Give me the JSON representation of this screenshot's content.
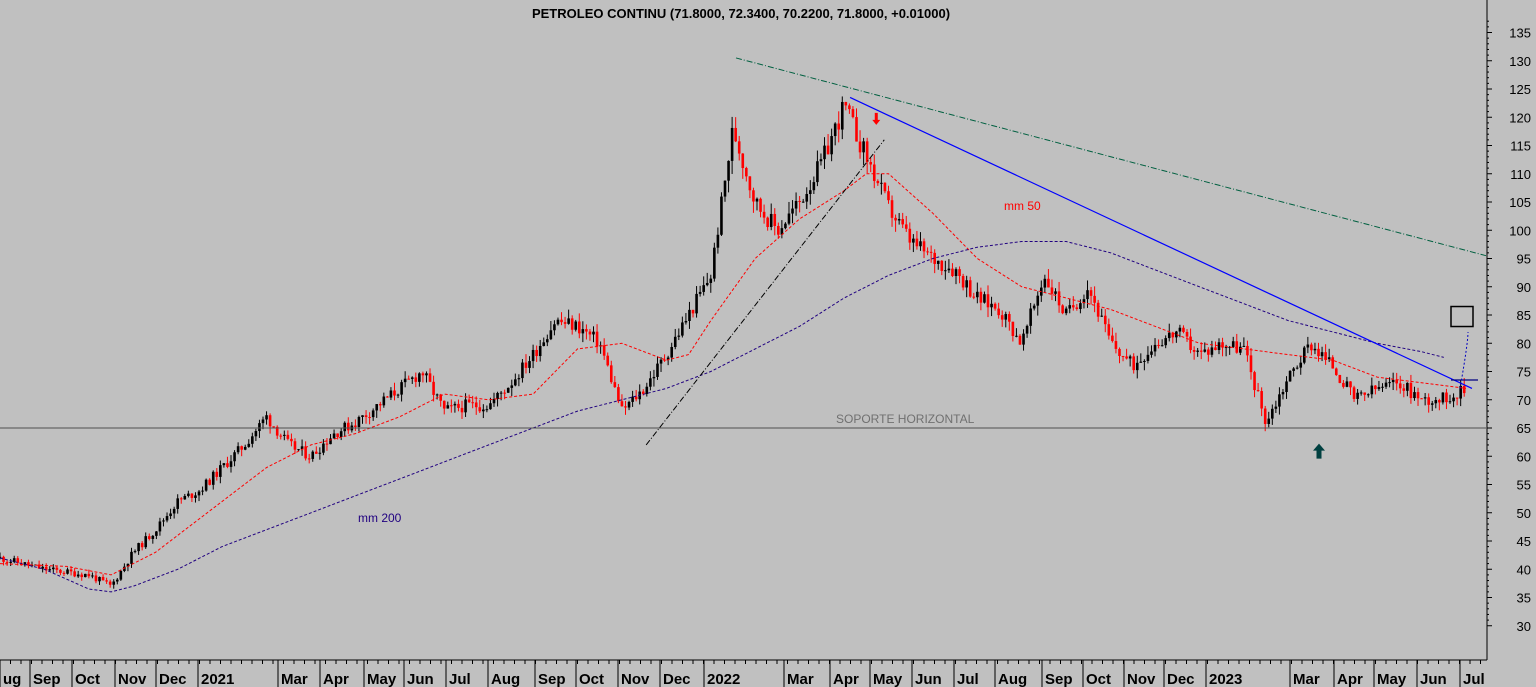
{
  "chart_data": {
    "type": "candlestick",
    "title": "PETROLEO CONTINU (71.8000, 72.3400, 70.2200, 71.8000, +0.01000)",
    "ylim": [
      25,
      140
    ],
    "y_ticks": [
      30,
      35,
      40,
      45,
      50,
      55,
      60,
      65,
      70,
      75,
      80,
      85,
      90,
      95,
      100,
      105,
      110,
      115,
      120,
      125,
      130,
      135
    ],
    "x_labels": [
      "Aug",
      "Sep",
      "Oct",
      "Nov",
      "Dec",
      "2021",
      "Mar",
      "Apr",
      "May",
      "Jun",
      "Jul",
      "Aug",
      "Sep",
      "Oct",
      "Nov",
      "Dec",
      "2022",
      "Mar",
      "Apr",
      "May",
      "Jun",
      "Jul",
      "Aug",
      "Sep",
      "Oct",
      "Nov",
      "Dec",
      "2023",
      "Mar",
      "Apr",
      "May",
      "Jun",
      "Jul"
    ],
    "x_label_visible": [
      "ug",
      "Sep",
      "Oct",
      "Nov",
      "Dec",
      "2021",
      "Mar",
      "Apr",
      "May",
      "Jun",
      "Jul",
      "Aug",
      "Sep",
      "Oct",
      "Nov",
      "Dec",
      "2022",
      "Mar",
      "Apr",
      "May",
      "Jun",
      "Jul",
      "Aug",
      "Sep",
      "Oct",
      "Nov",
      "Dec",
      "2023",
      "Mar",
      "Apr",
      "May",
      "Jun",
      "Jul"
    ],
    "price_path": [
      [
        0,
        42
      ],
      [
        1,
        41
      ],
      [
        2,
        40
      ],
      [
        3,
        39.5
      ],
      [
        4,
        39
      ],
      [
        5,
        37
      ],
      [
        6,
        43
      ],
      [
        7,
        47
      ],
      [
        8,
        52
      ],
      [
        9,
        54
      ],
      [
        10,
        58
      ],
      [
        11,
        62
      ],
      [
        12,
        67
      ],
      [
        13,
        62
      ],
      [
        14,
        60
      ],
      [
        15,
        64
      ],
      [
        16,
        66
      ],
      [
        17,
        69
      ],
      [
        18,
        72
      ],
      [
        19,
        75
      ],
      [
        20,
        68
      ],
      [
        21,
        69
      ],
      [
        22,
        69
      ],
      [
        23,
        73
      ],
      [
        24,
        78
      ],
      [
        25,
        84
      ],
      [
        26,
        83
      ],
      [
        27,
        80
      ],
      [
        28,
        68
      ],
      [
        29,
        72
      ],
      [
        30,
        78
      ],
      [
        31,
        85
      ],
      [
        32,
        92
      ],
      [
        33,
        118
      ],
      [
        34,
        105
      ],
      [
        35,
        100
      ],
      [
        36,
        105
      ],
      [
        37,
        112
      ],
      [
        38,
        122
      ],
      [
        39,
        113
      ],
      [
        40,
        104
      ],
      [
        41,
        98
      ],
      [
        42,
        95
      ],
      [
        43,
        93
      ],
      [
        44,
        88
      ],
      [
        45,
        86
      ],
      [
        46,
        80
      ],
      [
        47,
        92
      ],
      [
        48,
        85
      ],
      [
        49,
        90
      ],
      [
        50,
        80
      ],
      [
        51,
        76
      ],
      [
        52,
        80
      ],
      [
        53,
        82
      ],
      [
        54,
        78
      ],
      [
        55,
        80
      ],
      [
        56,
        79
      ],
      [
        57,
        66
      ],
      [
        58,
        74
      ],
      [
        59,
        80
      ],
      [
        60,
        76
      ],
      [
        61,
        70
      ],
      [
        62,
        72
      ],
      [
        63,
        73
      ],
      [
        64,
        70
      ],
      [
        65,
        70.2
      ],
      [
        66,
        71.8
      ]
    ],
    "series": [
      {
        "name": "mm 50",
        "color": "#ff0000",
        "style": "dashed",
        "values": [
          [
            0,
            41
          ],
          [
            3,
            40.5
          ],
          [
            5,
            39
          ],
          [
            7,
            43
          ],
          [
            9,
            49
          ],
          [
            11,
            55
          ],
          [
            12,
            58
          ],
          [
            14,
            62
          ],
          [
            16,
            64
          ],
          [
            18,
            67
          ],
          [
            20,
            71
          ],
          [
            22,
            70
          ],
          [
            24,
            71
          ],
          [
            26,
            79
          ],
          [
            28,
            80
          ],
          [
            30,
            77
          ],
          [
            31,
            78
          ],
          [
            32,
            84
          ],
          [
            34,
            95
          ],
          [
            36,
            102
          ],
          [
            38,
            107
          ],
          [
            39,
            110
          ],
          [
            40,
            110
          ],
          [
            42,
            103
          ],
          [
            44,
            95
          ],
          [
            46,
            90
          ],
          [
            48,
            88
          ],
          [
            50,
            86
          ],
          [
            52,
            83
          ],
          [
            54,
            80
          ],
          [
            56,
            79
          ],
          [
            58,
            78
          ],
          [
            60,
            77
          ],
          [
            62,
            74
          ],
          [
            64,
            73
          ],
          [
            66,
            72
          ]
        ]
      },
      {
        "name": "mm 200",
        "color": "#200080",
        "style": "dashed",
        "values": [
          [
            0,
            42
          ],
          [
            2,
            40
          ],
          [
            4,
            36.5
          ],
          [
            5,
            36
          ],
          [
            6,
            37
          ],
          [
            8,
            40
          ],
          [
            10,
            44
          ],
          [
            12,
            47
          ],
          [
            14,
            50
          ],
          [
            16,
            53
          ],
          [
            18,
            56
          ],
          [
            20,
            59
          ],
          [
            22,
            62
          ],
          [
            24,
            65
          ],
          [
            26,
            68
          ],
          [
            28,
            70
          ],
          [
            30,
            72
          ],
          [
            32,
            75
          ],
          [
            34,
            79
          ],
          [
            36,
            83
          ],
          [
            38,
            88
          ],
          [
            40,
            92
          ],
          [
            42,
            95
          ],
          [
            44,
            97
          ],
          [
            46,
            98
          ],
          [
            48,
            98
          ],
          [
            50,
            96
          ],
          [
            52,
            93
          ],
          [
            54,
            90
          ],
          [
            56,
            87
          ],
          [
            58,
            84
          ],
          [
            60,
            82
          ],
          [
            62,
            80
          ],
          [
            64,
            78.5
          ],
          [
            65,
            77.5
          ]
        ]
      }
    ],
    "annotations": [
      {
        "text": "mm 50",
        "color": "#ff0000"
      },
      {
        "text": "mm 200",
        "color": "#200080"
      },
      {
        "text": "SOPORTE HORIZONTAL",
        "color": "#707070"
      }
    ],
    "support_level": 65,
    "grid": false,
    "colors": {
      "up": "#000000",
      "down": "#ff0000",
      "trend": "#0000ff",
      "long_trend": "#006040",
      "arrow_down": "#ff0000",
      "arrow_up": "#004040",
      "background": "#c0c0c0"
    }
  }
}
